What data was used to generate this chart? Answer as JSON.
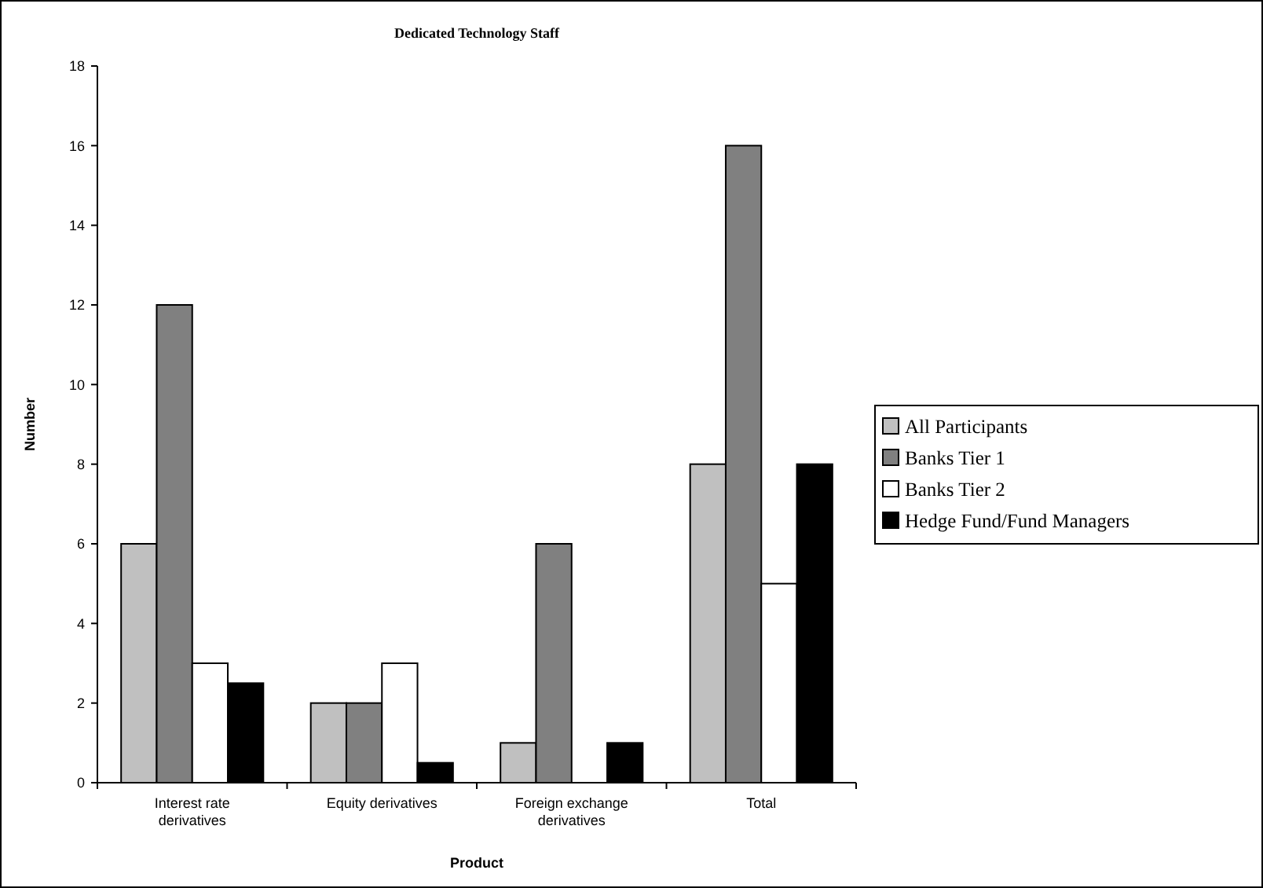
{
  "chart_data": {
    "type": "bar",
    "title": "Dedicated Technology Staff",
    "xlabel": "Product",
    "ylabel": "Number",
    "categories": [
      "Interest rate derivatives",
      "Equity derivatives",
      "Foreign exchange derivatives",
      "Total"
    ],
    "series": [
      {
        "name": "All Participants",
        "color": "#c0c0c0",
        "values": [
          6,
          2,
          1,
          8
        ]
      },
      {
        "name": "Banks Tier 1",
        "color": "#808080",
        "values": [
          12,
          2,
          6,
          16
        ]
      },
      {
        "name": "Banks Tier 2",
        "color": "#ffffff",
        "values": [
          3,
          3,
          0,
          5
        ]
      },
      {
        "name": "Hedge Fund/Fund Managers",
        "color": "#000000",
        "values": [
          2.5,
          0.5,
          1,
          8
        ]
      }
    ],
    "ylim": [
      0,
      18
    ],
    "yticks": [
      0,
      2,
      4,
      6,
      8,
      10,
      12,
      14,
      16,
      18
    ],
    "grid": false,
    "legend": "right"
  }
}
